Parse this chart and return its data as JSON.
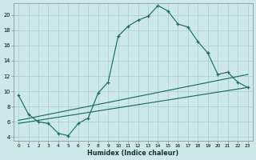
{
  "xlabel": "Humidex (Indice chaleur)",
  "bg_color": "#cce8e8",
  "grid_color": "#aacece",
  "line_color": "#1a6e64",
  "xlim_min": -0.5,
  "xlim_max": 23.5,
  "ylim_min": 3.5,
  "ylim_max": 21.5,
  "yticks": [
    4,
    6,
    8,
    10,
    12,
    14,
    16,
    18,
    20
  ],
  "xticks": [
    0,
    1,
    2,
    3,
    4,
    5,
    6,
    7,
    8,
    9,
    10,
    11,
    12,
    13,
    14,
    15,
    16,
    17,
    18,
    19,
    20,
    21,
    22,
    23
  ],
  "curve1_x": [
    0,
    1,
    2,
    3,
    4,
    5,
    6,
    7,
    8,
    9,
    10,
    11,
    12,
    13,
    14,
    15,
    16,
    17,
    18,
    19
  ],
  "curve1_y": [
    9.5,
    7.0,
    6.0,
    5.8,
    4.5,
    4.2,
    5.8,
    6.5,
    9.8,
    11.2,
    17.2,
    18.5,
    19.3,
    19.8,
    21.2,
    20.5,
    18.8,
    18.4,
    16.5,
    15.0
  ],
  "curve2_x": [
    19,
    20,
    21,
    22,
    23
  ],
  "curve2_y": [
    15.0,
    12.2,
    12.5,
    11.2,
    10.5
  ],
  "line1_x": [
    0,
    23
  ],
  "line1_y": [
    5.8,
    10.5
  ],
  "line2_x": [
    0,
    23
  ],
  "line2_y": [
    6.2,
    12.2
  ]
}
